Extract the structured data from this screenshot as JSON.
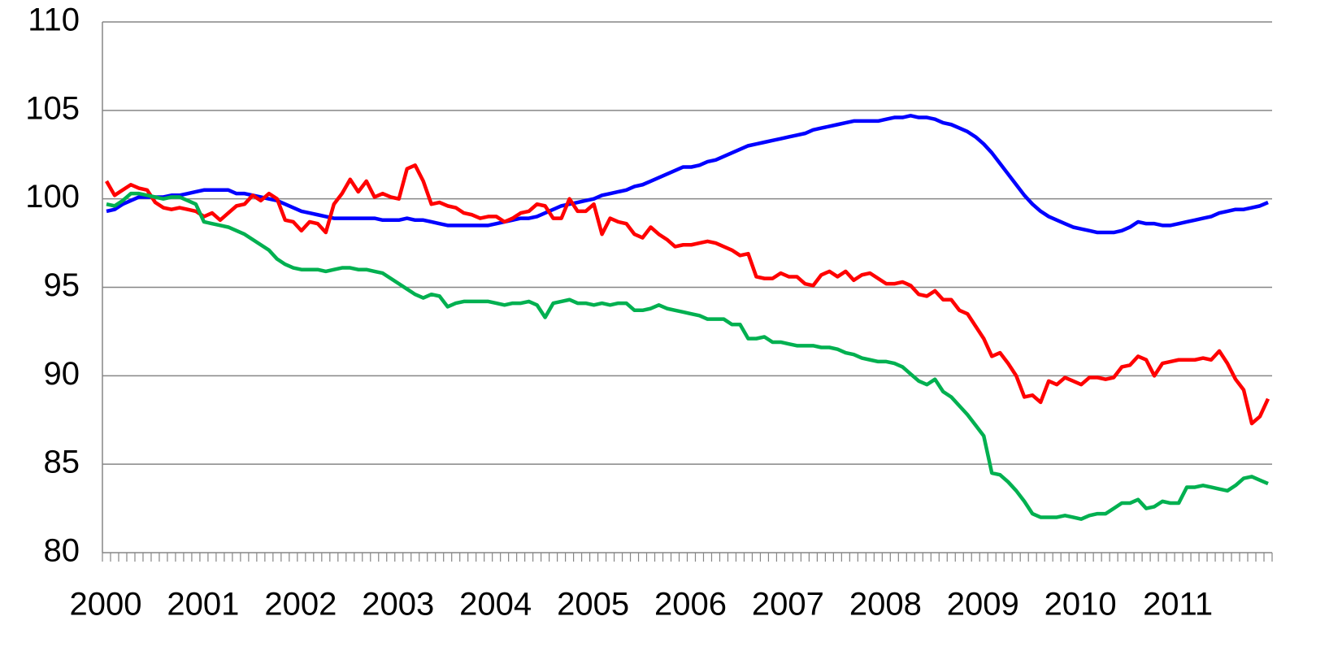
{
  "chart_data": {
    "type": "line",
    "categories": [
      "2000",
      null,
      null,
      null,
      null,
      null,
      null,
      null,
      null,
      null,
      null,
      null,
      "2001",
      null,
      null,
      null,
      null,
      null,
      null,
      null,
      null,
      null,
      null,
      null,
      "2002",
      null,
      null,
      null,
      null,
      null,
      null,
      null,
      null,
      null,
      null,
      null,
      "2003",
      null,
      null,
      null,
      null,
      null,
      null,
      null,
      null,
      null,
      null,
      null,
      "2004",
      null,
      null,
      null,
      null,
      null,
      null,
      null,
      null,
      null,
      null,
      null,
      "2005",
      null,
      null,
      null,
      null,
      null,
      null,
      null,
      null,
      null,
      null,
      null,
      "2006",
      null,
      null,
      null,
      null,
      null,
      null,
      null,
      null,
      null,
      null,
      null,
      "2007",
      null,
      null,
      null,
      null,
      null,
      null,
      null,
      null,
      null,
      null,
      null,
      "2008",
      null,
      null,
      null,
      null,
      null,
      null,
      null,
      null,
      null,
      null,
      null,
      "2009",
      null,
      null,
      null,
      null,
      null,
      null,
      null,
      null,
      null,
      null,
      null,
      "2010",
      null,
      null,
      null,
      null,
      null,
      null,
      null,
      null,
      null,
      null,
      null,
      "2011",
      null,
      null,
      null,
      null,
      null,
      null,
      null,
      null,
      null,
      null,
      null
    ],
    "series": [
      {
        "color": "#0000ff",
        "values": [
          99.3,
          99.4,
          99.7,
          99.9,
          100.1,
          100.1,
          100.1,
          100.1,
          100.2,
          100.2,
          100.3,
          100.4,
          100.5,
          100.5,
          100.5,
          100.5,
          100.3,
          100.3,
          100.2,
          100.1,
          100.0,
          99.9,
          99.7,
          99.5,
          99.3,
          99.2,
          99.1,
          99.0,
          98.9,
          98.9,
          98.9,
          98.9,
          98.9,
          98.9,
          98.8,
          98.8,
          98.8,
          98.9,
          98.8,
          98.8,
          98.7,
          98.6,
          98.5,
          98.5,
          98.5,
          98.5,
          98.5,
          98.5,
          98.6,
          98.7,
          98.8,
          98.9,
          98.9,
          99.0,
          99.2,
          99.4,
          99.6,
          99.7,
          99.8,
          99.9,
          100.0,
          100.2,
          100.3,
          100.4,
          100.5,
          100.7,
          100.8,
          101.0,
          101.2,
          101.4,
          101.6,
          101.8,
          101.8,
          101.9,
          102.1,
          102.2,
          102.4,
          102.6,
          102.8,
          103.0,
          103.1,
          103.2,
          103.3,
          103.4,
          103.5,
          103.6,
          103.7,
          103.9,
          104.0,
          104.1,
          104.2,
          104.3,
          104.4,
          104.4,
          104.4,
          104.4,
          104.5,
          104.6,
          104.6,
          104.7,
          104.6,
          104.6,
          104.5,
          104.3,
          104.2,
          104.0,
          103.8,
          103.5,
          103.1,
          102.6,
          102.0,
          101.4,
          100.8,
          100.2,
          99.7,
          99.3,
          99.0,
          98.8,
          98.6,
          98.4,
          98.3,
          98.2,
          98.1,
          98.1,
          98.1,
          98.2,
          98.4,
          98.7,
          98.6,
          98.6,
          98.5,
          98.5,
          98.6,
          98.7,
          98.8,
          98.9,
          99.0,
          99.2,
          99.3,
          99.4,
          99.4,
          99.5,
          99.6,
          99.8
        ]
      },
      {
        "color": "#ff0000",
        "values": [
          101.0,
          100.2,
          100.5,
          100.8,
          100.6,
          100.5,
          99.8,
          99.5,
          99.4,
          99.5,
          99.4,
          99.3,
          99.0,
          99.2,
          98.8,
          99.2,
          99.6,
          99.7,
          100.2,
          99.9,
          100.3,
          100.0,
          98.8,
          98.7,
          98.2,
          98.7,
          98.6,
          98.1,
          99.7,
          100.3,
          101.1,
          100.4,
          101.0,
          100.1,
          100.3,
          100.1,
          100.0,
          101.7,
          101.9,
          101.0,
          99.7,
          99.8,
          99.6,
          99.5,
          99.2,
          99.1,
          98.9,
          99.0,
          99.0,
          98.7,
          98.9,
          99.2,
          99.3,
          99.7,
          99.6,
          98.9,
          98.9,
          100.0,
          99.3,
          99.3,
          99.7,
          98.0,
          98.9,
          98.7,
          98.6,
          98.0,
          97.8,
          98.4,
          98.0,
          97.7,
          97.3,
          97.4,
          97.4,
          97.5,
          97.6,
          97.5,
          97.3,
          97.1,
          96.8,
          96.9,
          95.6,
          95.5,
          95.5,
          95.8,
          95.6,
          95.6,
          95.2,
          95.1,
          95.7,
          95.9,
          95.6,
          95.9,
          95.4,
          95.7,
          95.8,
          95.5,
          95.2,
          95.2,
          95.3,
          95.1,
          94.6,
          94.5,
          94.8,
          94.3,
          94.3,
          93.7,
          93.5,
          92.8,
          92.1,
          91.1,
          91.3,
          90.7,
          90.0,
          88.8,
          88.9,
          88.5,
          89.7,
          89.5,
          89.9,
          89.7,
          89.5,
          89.9,
          89.9,
          89.8,
          89.9,
          90.5,
          90.6,
          91.1,
          90.9,
          90.0,
          90.7,
          90.8,
          90.9,
          90.9,
          90.9,
          91.0,
          90.9,
          91.4,
          90.7,
          89.8,
          89.2,
          87.3,
          87.7,
          88.7
        ]
      },
      {
        "color": "#00b050",
        "values": [
          99.7,
          99.6,
          99.9,
          100.3,
          100.3,
          100.2,
          100.1,
          100.0,
          100.1,
          100.1,
          99.9,
          99.7,
          98.7,
          98.6,
          98.5,
          98.4,
          98.2,
          98.0,
          97.7,
          97.4,
          97.1,
          96.6,
          96.3,
          96.1,
          96.0,
          96.0,
          96.0,
          95.9,
          96.0,
          96.1,
          96.1,
          96.0,
          96.0,
          95.9,
          95.8,
          95.5,
          95.2,
          94.9,
          94.6,
          94.4,
          94.6,
          94.5,
          93.9,
          94.1,
          94.2,
          94.2,
          94.2,
          94.2,
          94.1,
          94.0,
          94.1,
          94.1,
          94.2,
          94.0,
          93.3,
          94.1,
          94.2,
          94.3,
          94.1,
          94.1,
          94.0,
          94.1,
          94.0,
          94.1,
          94.1,
          93.7,
          93.7,
          93.8,
          94.0,
          93.8,
          93.7,
          93.6,
          93.5,
          93.4,
          93.2,
          93.2,
          93.2,
          92.9,
          92.9,
          92.1,
          92.1,
          92.2,
          91.9,
          91.9,
          91.8,
          91.7,
          91.7,
          91.7,
          91.6,
          91.6,
          91.5,
          91.3,
          91.2,
          91.0,
          90.9,
          90.8,
          90.8,
          90.7,
          90.5,
          90.1,
          89.7,
          89.5,
          89.8,
          89.1,
          88.8,
          88.3,
          87.8,
          87.2,
          86.6,
          84.5,
          84.4,
          84.0,
          83.5,
          82.9,
          82.2,
          82.0,
          82.0,
          82.0,
          82.1,
          82.0,
          81.9,
          82.1,
          82.2,
          82.2,
          82.5,
          82.8,
          82.8,
          83.0,
          82.5,
          82.6,
          82.9,
          82.8,
          82.8,
          83.7,
          83.7,
          83.8,
          83.7,
          83.6,
          83.5,
          83.8,
          84.2,
          84.3,
          84.1,
          83.9
        ]
      }
    ],
    "ylim": [
      80,
      110
    ],
    "yticks": [
      80,
      85,
      90,
      95,
      100,
      105,
      110
    ],
    "grid": true
  }
}
